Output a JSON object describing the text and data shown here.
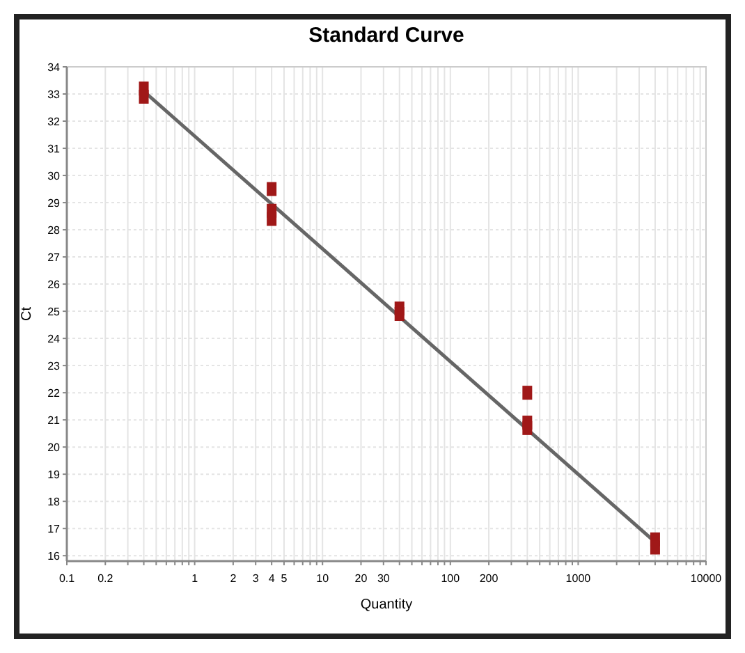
{
  "chart_data": {
    "type": "scatter",
    "title": "Standard Curve",
    "xlabel": "Quantity",
    "ylabel": "Ct",
    "log": "x",
    "grid": true,
    "marker": "square",
    "xlim": [
      0.1,
      10000
    ],
    "xticks": [
      0.1,
      0.2,
      {
        "value": 0.3,
        "label": null
      },
      {
        "value": 0.4,
        "label": null
      },
      {
        "value": 0.5,
        "label": null
      },
      {
        "value": 0.6,
        "label": null
      },
      {
        "value": 0.7,
        "label": null
      },
      {
        "value": 0.8,
        "label": null
      },
      {
        "value": 0.9,
        "label": null
      },
      1,
      2,
      3,
      4,
      5,
      {
        "value": 6,
        "label": null
      },
      {
        "value": 7,
        "label": null
      },
      {
        "value": 8,
        "label": null
      },
      {
        "value": 9,
        "label": null
      },
      10,
      20,
      30,
      {
        "value": 40,
        "label": null
      },
      {
        "value": 50,
        "label": null
      },
      {
        "value": 60,
        "label": null
      },
      {
        "value": 70,
        "label": null
      },
      {
        "value": 80,
        "label": null
      },
      {
        "value": 90,
        "label": null
      },
      100,
      200,
      {
        "value": 300,
        "label": null
      },
      {
        "value": 400,
        "label": null
      },
      {
        "value": 500,
        "label": null
      },
      {
        "value": 600,
        "label": null
      },
      {
        "value": 700,
        "label": null
      },
      {
        "value": 800,
        "label": null
      },
      {
        "value": 900,
        "label": null
      },
      1000,
      {
        "value": 2000,
        "label": null
      },
      {
        "value": 3000,
        "label": null
      },
      {
        "value": 4000,
        "label": null
      },
      {
        "value": 5000,
        "label": null
      },
      {
        "value": 6000,
        "label": null
      },
      {
        "value": 7000,
        "label": null
      },
      {
        "value": 8000,
        "label": null
      },
      {
        "value": 9000,
        "label": null
      },
      10000
    ],
    "ylim": [
      15.8,
      34
    ],
    "yticks": [
      16,
      17,
      18,
      19,
      20,
      21,
      22,
      23,
      24,
      25,
      26,
      27,
      28,
      29,
      30,
      31,
      32,
      33,
      34
    ],
    "series": [
      {
        "color": "#a01818",
        "x": [
          0.4,
          0.4,
          4,
          4,
          4,
          40,
          40,
          400,
          400,
          400,
          4000,
          4000
        ],
        "values": [
          33.2,
          32.9,
          29.5,
          28.7,
          28.4,
          25.1,
          24.9,
          22.0,
          20.9,
          20.7,
          16.6,
          16.3
        ]
      },
      {
        "type": "line",
        "color": "#666666",
        "marker": "none",
        "x": [
          0.4,
          4000
        ],
        "values": [
          33.1,
          16.5
        ]
      }
    ]
  }
}
